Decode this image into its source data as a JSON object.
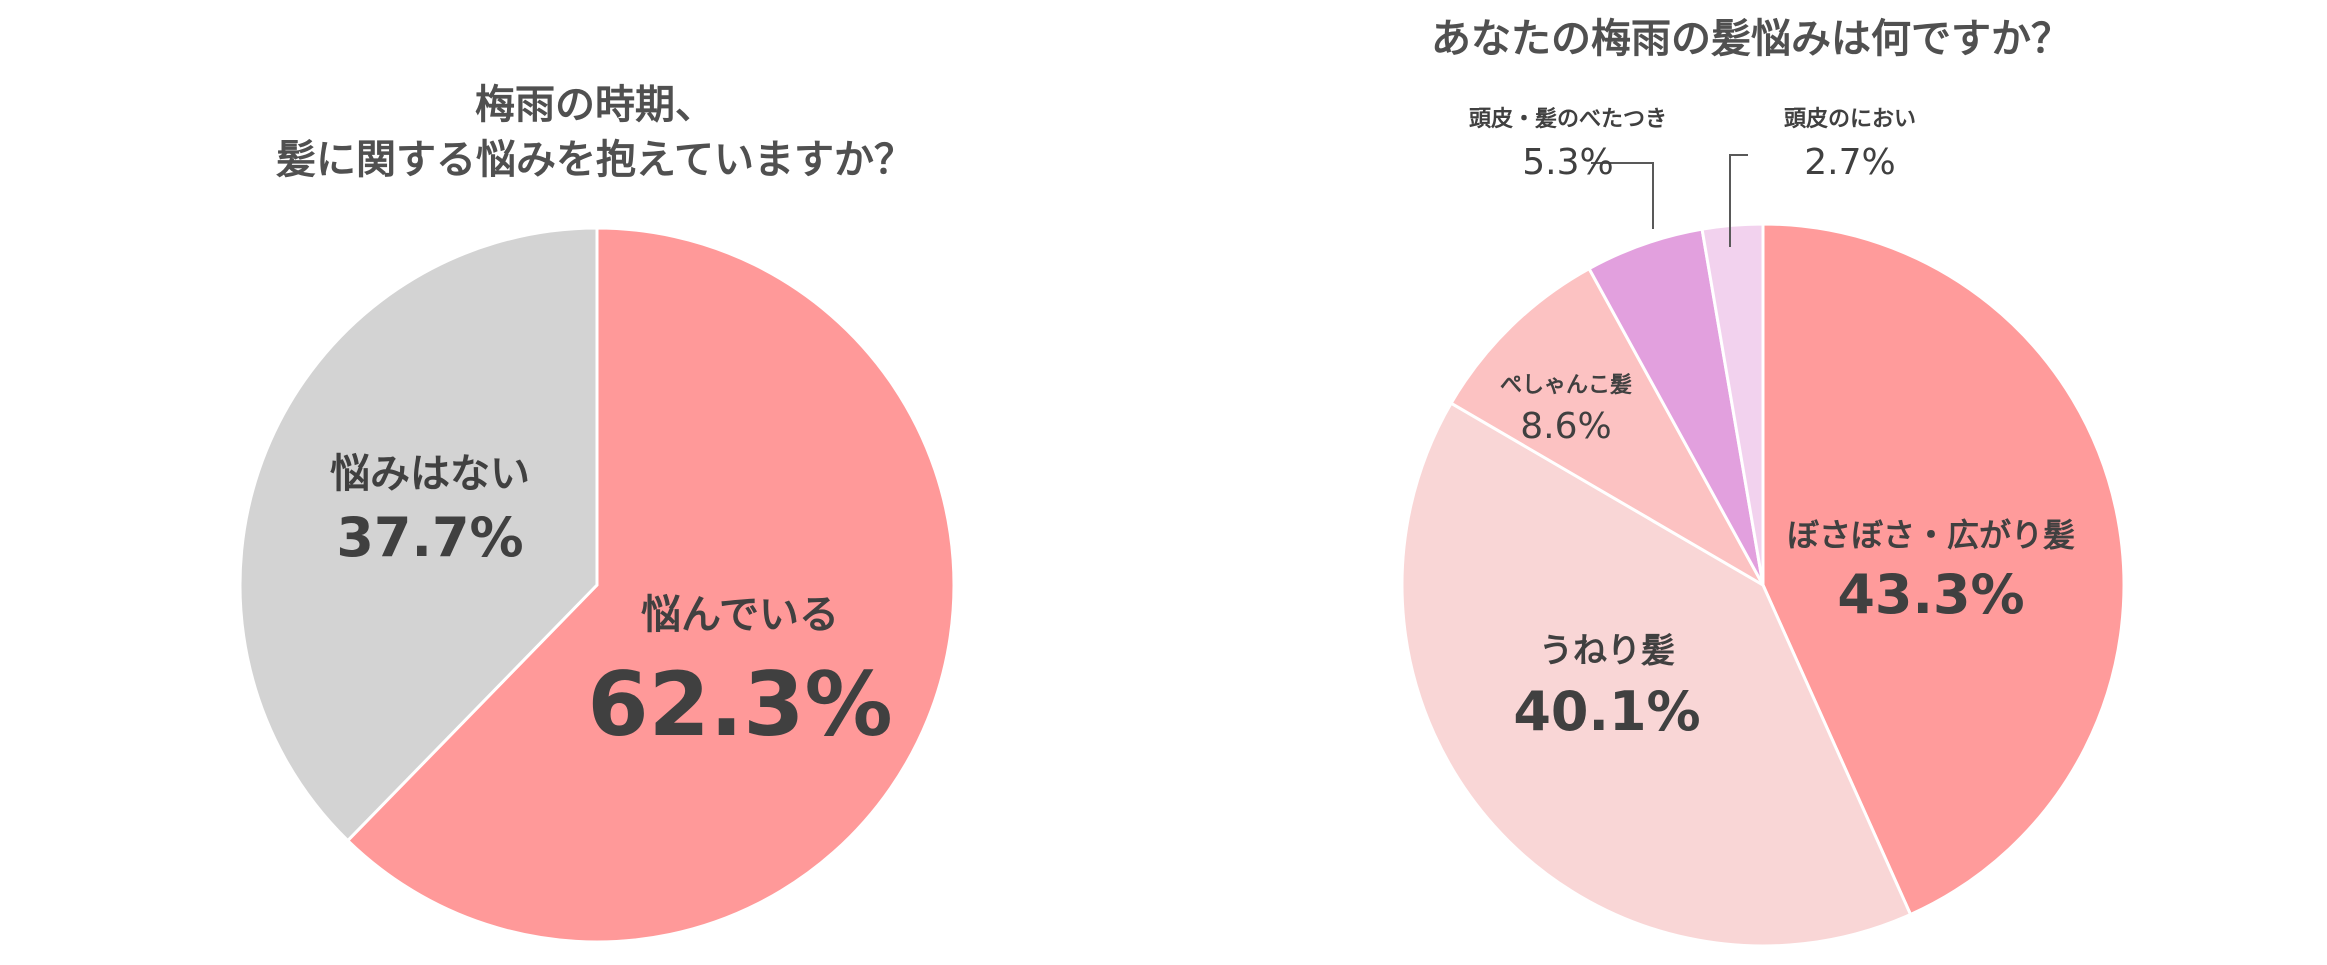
{
  "chart_data": [
    {
      "type": "pie",
      "title_lines": [
        "梅雨の時期、",
        "髪に関する悩みを抱えていますか？"
      ],
      "slices": [
        {
          "label": "悩んでいる",
          "value": 62.3,
          "display": "62.3%",
          "color": "#FF9999"
        },
        {
          "label": "悩みはない",
          "value": 37.7,
          "display": "37.7%",
          "color": "#D3D3D3"
        }
      ],
      "start": "12 o'clock",
      "direction": "clockwise"
    },
    {
      "type": "pie",
      "title": "あなたの梅雨の髪悩みは何ですか？",
      "slices": [
        {
          "label": "ぼさぼさ・広がり髪",
          "value": 43.3,
          "display": "43.3%",
          "color": "#FF9B9B"
        },
        {
          "label": "うねり髪",
          "value": 40.1,
          "display": "40.1%",
          "color": "#F9D6D6"
        },
        {
          "label": "ぺしゃんこ髪",
          "value": 8.6,
          "display": "8.6%",
          "color": "#FCC2C2"
        },
        {
          "label": "頭皮・髪のべたつき",
          "value": 5.3,
          "display": "5.3%",
          "color": "#E2A0DE"
        },
        {
          "label": "頭皮のにおい",
          "value": 2.7,
          "display": "2.7%",
          "color": "#F2D2EE"
        }
      ],
      "start": "12 o'clock",
      "direction": "clockwise"
    }
  ]
}
